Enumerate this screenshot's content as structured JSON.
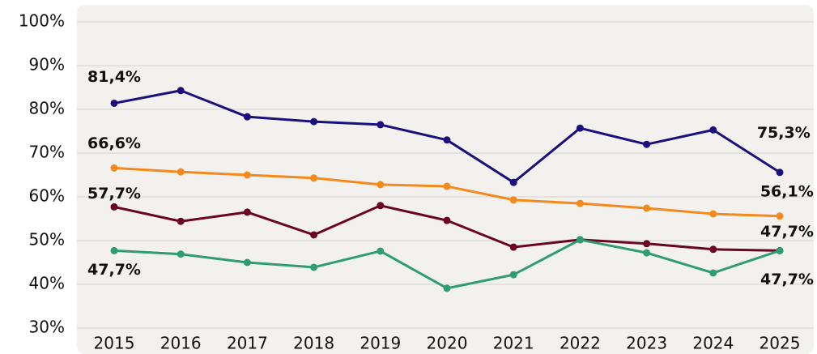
{
  "chart_data": {
    "type": "line",
    "categories": [
      "2015",
      "2016",
      "2017",
      "2018",
      "2019",
      "2020",
      "2021",
      "2022",
      "2023",
      "2024",
      "2025"
    ],
    "series": [
      {
        "color": "#1b0f7c",
        "values": [
          81.4,
          84.3,
          78.3,
          77.2,
          76.5,
          73.0,
          63.3,
          75.7,
          72.0,
          75.3,
          65.6
        ],
        "value_labels": [
          "81,4%",
          null,
          null,
          null,
          null,
          null,
          null,
          null,
          null,
          "75,3%",
          null
        ]
      },
      {
        "color": "#f28a1e",
        "values": [
          66.6,
          65.7,
          65.0,
          64.3,
          62.8,
          62.4,
          59.3,
          58.5,
          57.4,
          56.1,
          55.6
        ],
        "value_labels": [
          "66,6%",
          null,
          null,
          null,
          null,
          null,
          null,
          null,
          null,
          "56,1%",
          null
        ]
      },
      {
        "color": "#6a0324",
        "values": [
          57.7,
          54.4,
          56.5,
          51.3,
          58.0,
          54.6,
          48.5,
          50.2,
          49.3,
          48.0,
          47.7
        ],
        "value_labels": [
          "57,7%",
          null,
          null,
          null,
          null,
          null,
          null,
          null,
          null,
          null,
          "47,7%"
        ]
      },
      {
        "color": "#2f9d6f",
        "values": [
          47.7,
          46.9,
          45.0,
          43.9,
          47.6,
          39.1,
          42.2,
          50.2,
          47.2,
          42.6,
          47.7
        ],
        "value_labels": [
          "47,7%",
          null,
          null,
          null,
          null,
          null,
          null,
          null,
          null,
          null,
          "47,7%"
        ]
      }
    ],
    "ylim": [
      30,
      100
    ],
    "yticks": [
      {
        "value": 30,
        "label": "30%"
      },
      {
        "value": 40,
        "label": "40%"
      },
      {
        "value": 50,
        "label": "50%"
      },
      {
        "value": 60,
        "label": "60%"
      },
      {
        "value": 70,
        "label": "70%"
      },
      {
        "value": 80,
        "label": "80%"
      },
      {
        "value": 90,
        "label": "90%"
      },
      {
        "value": 100,
        "label": "100%"
      }
    ],
    "grid": true
  }
}
